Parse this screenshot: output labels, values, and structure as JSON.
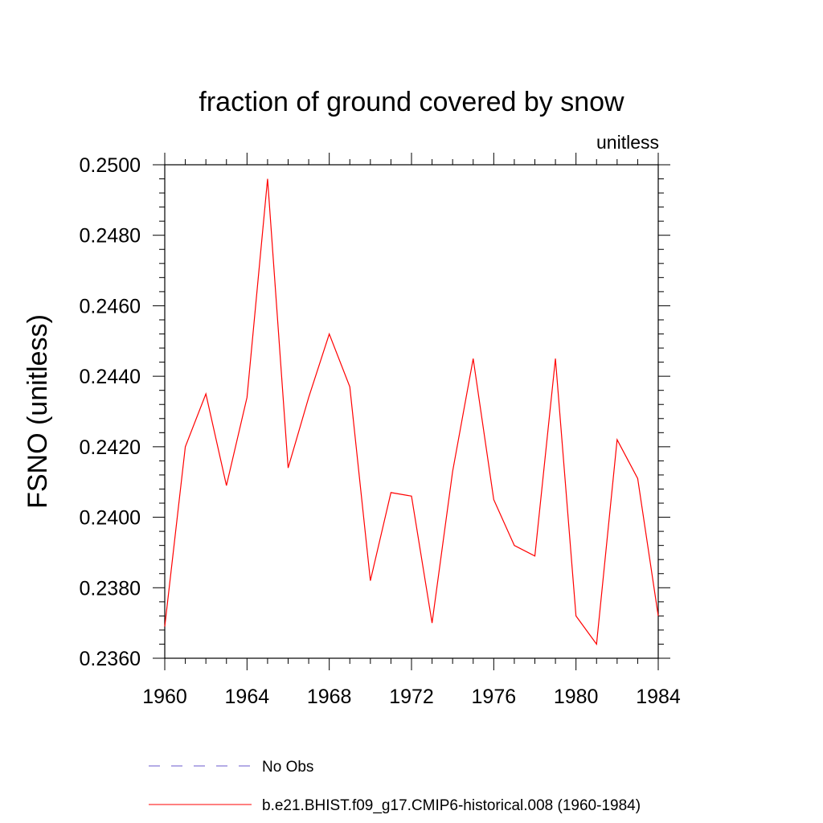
{
  "chart_data": {
    "type": "line",
    "title": "fraction of ground covered by snow",
    "subtitle": "unitless",
    "xlabel": "",
    "ylabel": "FSNO  (unitless)",
    "xlim": [
      1960,
      1984
    ],
    "ylim": [
      0.236,
      0.25
    ],
    "x_ticks": [
      "1960",
      "1964",
      "1968",
      "1972",
      "1976",
      "1980",
      "1984"
    ],
    "y_ticks": [
      "0.2360",
      "0.2380",
      "0.2400",
      "0.2420",
      "0.2440",
      "0.2460",
      "0.2480",
      "0.2500"
    ],
    "grid": false,
    "legend_position": "bottom",
    "series": [
      {
        "name": "No Obs",
        "color": "#6a5acd",
        "dash": true,
        "x": [],
        "values": []
      },
      {
        "name": "b.e21.BHIST.f09_g17.CMIP6-historical.008 (1960-1984)",
        "color": "#ff0000",
        "dash": false,
        "x": [
          1960,
          1961,
          1962,
          1963,
          1964,
          1965,
          1966,
          1967,
          1968,
          1969,
          1970,
          1971,
          1972,
          1973,
          1974,
          1975,
          1976,
          1977,
          1978,
          1979,
          1980,
          1981,
          1982,
          1983,
          1984
        ],
        "values": [
          0.2369,
          0.242,
          0.2435,
          0.2409,
          0.2434,
          0.2496,
          0.2414,
          0.2434,
          0.2452,
          0.2437,
          0.2382,
          0.2407,
          0.2406,
          0.237,
          0.2413,
          0.2445,
          0.2405,
          0.2392,
          0.2389,
          0.2445,
          0.2372,
          0.2364,
          0.2422,
          0.2411,
          0.2372
        ]
      }
    ]
  }
}
